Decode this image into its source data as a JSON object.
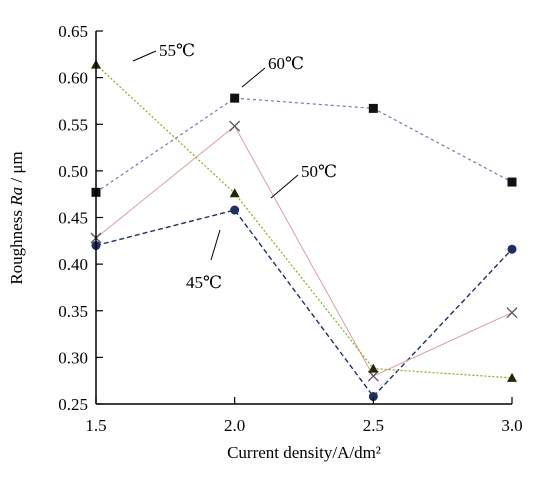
{
  "chart_data": {
    "type": "line",
    "xlabel": "Current density/A/dm²",
    "ylabel_prefix": "Roughness ",
    "ylabel_italic": "Ra",
    "ylabel_suffix": " / μm",
    "x": [
      1.5,
      2.0,
      2.5,
      3.0
    ],
    "xlim": [
      1.5,
      3.0
    ],
    "ylim": [
      0.25,
      0.65
    ],
    "xticks": [
      "1.5",
      "2.0",
      "2.5",
      "3.0"
    ],
    "yticks": [
      "0.25",
      "0.30",
      "0.35",
      "0.40",
      "0.45",
      "0.50",
      "0.55",
      "0.60",
      "0.65"
    ],
    "grid": false,
    "series": [
      {
        "name": "45℃",
        "values": [
          0.42,
          0.458,
          0.258,
          0.416
        ],
        "color": "#1f2f63",
        "marker": "circle"
      },
      {
        "name": "50℃",
        "values": [
          0.428,
          0.548,
          0.28,
          0.348
        ],
        "color": "#7a7a7a",
        "marker": "x"
      },
      {
        "name": "55℃",
        "values": [
          0.614,
          0.476,
          0.288,
          0.278
        ],
        "color": "#6f8f10",
        "marker": "triangle"
      },
      {
        "name": "60℃",
        "values": [
          0.477,
          0.578,
          0.567,
          0.488
        ],
        "color": "#111111",
        "marker": "square"
      }
    ]
  }
}
